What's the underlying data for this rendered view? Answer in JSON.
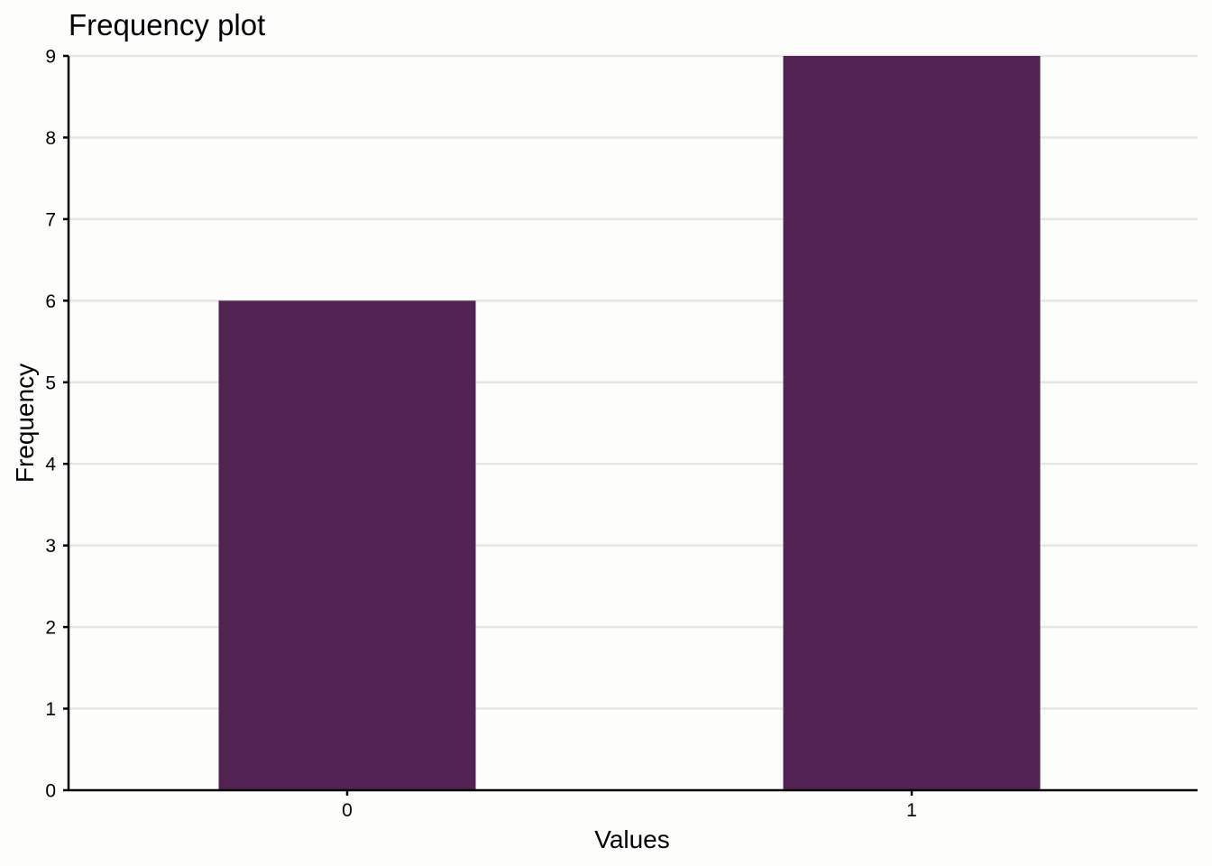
{
  "chart_data": {
    "type": "bar",
    "title": "Frequency plot",
    "xlabel": "Values",
    "ylabel": "Frequency",
    "categories": [
      "0",
      "1"
    ],
    "values": [
      6,
      9
    ],
    "ylim": [
      0,
      9
    ],
    "yticks": [
      0,
      1,
      2,
      3,
      4,
      5,
      6,
      7,
      8,
      9
    ],
    "grid": "horizontal",
    "colors": {
      "bar": "#522352",
      "grid": "#e6e6e6",
      "axis": "#000000",
      "background": "#fdfdfb"
    }
  }
}
